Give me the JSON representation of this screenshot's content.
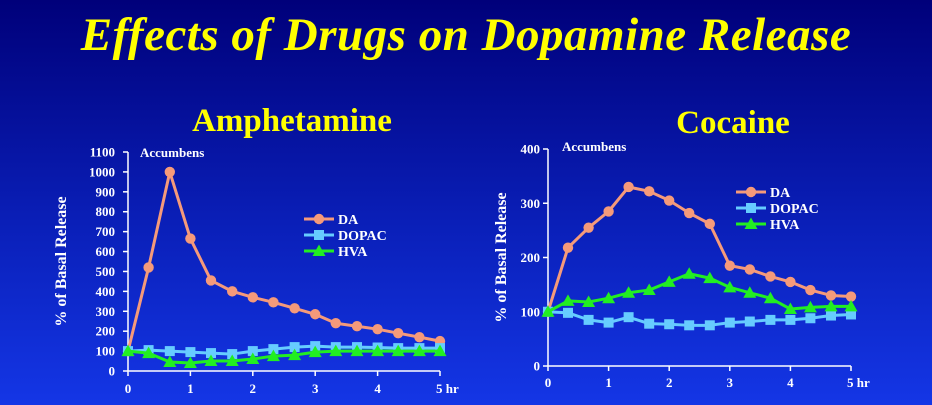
{
  "slide": {
    "title": "Effects of Drugs on Dopamine Release"
  },
  "colors": {
    "DA": "#f59a7a",
    "DOPAC": "#66ccff",
    "HVA": "#22ee22"
  },
  "chart_data": [
    {
      "type": "line",
      "title": "Amphetamine",
      "annotation": "Accumbens",
      "ylabel": "% of Basal Release",
      "xlabel": "",
      "ylim": [
        0,
        1100
      ],
      "yticks": [
        0,
        100,
        200,
        300,
        400,
        500,
        600,
        700,
        800,
        900,
        1000,
        1100
      ],
      "xlim": [
        0,
        5
      ],
      "xticks": [
        "0",
        "1",
        "2",
        "3",
        "4",
        "5 hr"
      ],
      "legend": "right",
      "grid": false,
      "series": [
        {
          "name": "DA",
          "marker": "circle",
          "x": [
            0,
            0.33,
            0.67,
            1,
            1.33,
            1.67,
            2,
            2.33,
            2.67,
            3,
            3.33,
            3.67,
            4,
            4.33,
            4.67,
            5
          ],
          "y": [
            100,
            520,
            1000,
            665,
            455,
            400,
            370,
            345,
            315,
            285,
            240,
            225,
            210,
            190,
            170,
            150
          ]
        },
        {
          "name": "DOPAC",
          "marker": "square",
          "x": [
            0,
            0.33,
            0.67,
            1,
            1.33,
            1.67,
            2,
            2.33,
            2.67,
            3,
            3.33,
            3.67,
            4,
            4.33,
            4.67,
            5
          ],
          "y": [
            100,
            105,
            100,
            95,
            90,
            85,
            100,
            110,
            120,
            125,
            120,
            120,
            118,
            115,
            115,
            115
          ]
        },
        {
          "name": "HVA",
          "marker": "triangle",
          "x": [
            0,
            0.33,
            0.67,
            1,
            1.33,
            1.67,
            2,
            2.33,
            2.67,
            3,
            3.33,
            3.67,
            4,
            4.33,
            4.67,
            5
          ],
          "y": [
            100,
            90,
            45,
            40,
            50,
            50,
            60,
            75,
            80,
            95,
            100,
            100,
            100,
            100,
            100,
            100
          ]
        }
      ]
    },
    {
      "type": "line",
      "title": "Cocaine",
      "annotation": "Accumbens",
      "ylabel": "% of Basal Release",
      "xlabel": "",
      "ylim": [
        0,
        400
      ],
      "yticks": [
        0,
        100,
        200,
        300,
        400
      ],
      "xlim": [
        0,
        5
      ],
      "xticks": [
        "0",
        "1",
        "2",
        "3",
        "4",
        "5 hr"
      ],
      "legend": "right",
      "grid": false,
      "series": [
        {
          "name": "DA",
          "marker": "circle",
          "x": [
            0,
            0.33,
            0.67,
            1,
            1.33,
            1.67,
            2,
            2.33,
            2.67,
            3,
            3.33,
            3.67,
            4,
            4.33,
            4.67,
            5
          ],
          "y": [
            100,
            218,
            255,
            285,
            330,
            322,
            305,
            282,
            262,
            185,
            178,
            165,
            155,
            140,
            130,
            128
          ]
        },
        {
          "name": "DOPAC",
          "marker": "square",
          "x": [
            0,
            0.33,
            0.67,
            1,
            1.33,
            1.67,
            2,
            2.33,
            2.67,
            3,
            3.33,
            3.67,
            4,
            4.33,
            4.67,
            5
          ],
          "y": [
            100,
            98,
            85,
            80,
            90,
            78,
            77,
            75,
            75,
            80,
            82,
            85,
            85,
            88,
            93,
            95
          ]
        },
        {
          "name": "HVA",
          "marker": "triangle",
          "x": [
            0,
            0.33,
            0.67,
            1,
            1.33,
            1.67,
            2,
            2.33,
            2.67,
            3,
            3.33,
            3.67,
            4,
            4.33,
            4.67,
            5
          ],
          "y": [
            100,
            120,
            118,
            125,
            135,
            140,
            155,
            170,
            162,
            145,
            135,
            125,
            105,
            108,
            110,
            110
          ]
        }
      ]
    }
  ]
}
